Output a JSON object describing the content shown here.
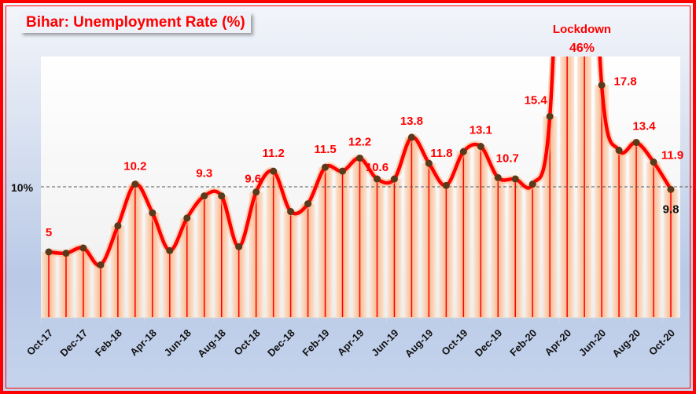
{
  "title": "Bihar: Unemployment Rate (%)",
  "y_axis": {
    "gridline_label": "10%"
  },
  "annotation": {
    "line1": "Lockdown",
    "line2": "46%"
  },
  "colors": {
    "line": "#ff0000",
    "marker": "#5a3a1a",
    "frame": "#ff0000",
    "text_labels": "#ff0000"
  },
  "chart_data": {
    "type": "line",
    "title": "Bihar: Unemployment Rate (%)",
    "xlabel": "",
    "ylabel": "",
    "ylim": [
      0,
      20
    ],
    "reference_line": {
      "value": 10,
      "label": "10%",
      "style": "dashed"
    },
    "x": [
      "Oct-17",
      "Nov-17",
      "Dec-17",
      "Jan-18",
      "Feb-18",
      "Mar-18",
      "Apr-18",
      "May-18",
      "Jun-18",
      "Jul-18",
      "Aug-18",
      "Sep-18",
      "Oct-18",
      "Nov-18",
      "Dec-18",
      "Jan-19",
      "Feb-19",
      "Mar-19",
      "Apr-19",
      "May-19",
      "Jun-19",
      "Jul-19",
      "Aug-19",
      "Sep-19",
      "Oct-19",
      "Nov-19",
      "Dec-19",
      "Jan-20",
      "Feb-20",
      "Mar-20",
      "Apr-20",
      "May-20",
      "Jun-20",
      "Jul-20",
      "Aug-20",
      "Sep-20",
      "Oct-20"
    ],
    "tick_labels": [
      "Oct-17",
      "Dec-17",
      "Feb-18",
      "Apr-18",
      "Jun-18",
      "Aug-18",
      "Oct-18",
      "Dec-18",
      "Feb-19",
      "Apr-19",
      "Jun-19",
      "Aug-19",
      "Oct-19",
      "Dec-19",
      "Feb-20",
      "Apr-20",
      "Jun-20",
      "Aug-20",
      "Oct-20"
    ],
    "series": [
      {
        "name": "Unemployment Rate (%)",
        "values": [
          5.0,
          4.9,
          5.3,
          4.0,
          7.0,
          10.2,
          8.0,
          5.1,
          7.6,
          9.3,
          9.3,
          5.4,
          9.6,
          11.2,
          8.1,
          8.7,
          11.5,
          11.2,
          12.2,
          10.6,
          10.6,
          13.8,
          11.8,
          10.1,
          12.7,
          13.1,
          10.7,
          10.6,
          10.2,
          15.4,
          46,
          46,
          17.8,
          12.8,
          13.4,
          11.9,
          9.8
        ]
      }
    ],
    "data_labels": [
      {
        "index": 0,
        "text": "5"
      },
      {
        "index": 5,
        "text": "10.2"
      },
      {
        "index": 9,
        "text": "9.3"
      },
      {
        "index": 12,
        "text": "9.6"
      },
      {
        "index": 13,
        "text": "11.2"
      },
      {
        "index": 16,
        "text": "11.5"
      },
      {
        "index": 18,
        "text": "12.2"
      },
      {
        "index": 19,
        "text": "10.6"
      },
      {
        "index": 21,
        "text": "13.8"
      },
      {
        "index": 22,
        "text": "11.8"
      },
      {
        "index": 25,
        "text": "13.1"
      },
      {
        "index": 26,
        "text": "10.7"
      },
      {
        "index": 29,
        "text": "15.4"
      },
      {
        "index": 32,
        "text": "17.8"
      },
      {
        "index": 34,
        "text": "13.4"
      },
      {
        "index": 35,
        "text": "11.9"
      },
      {
        "index": 36,
        "text": "9.8"
      }
    ],
    "annotations": [
      "Lockdown",
      "46%"
    ]
  }
}
